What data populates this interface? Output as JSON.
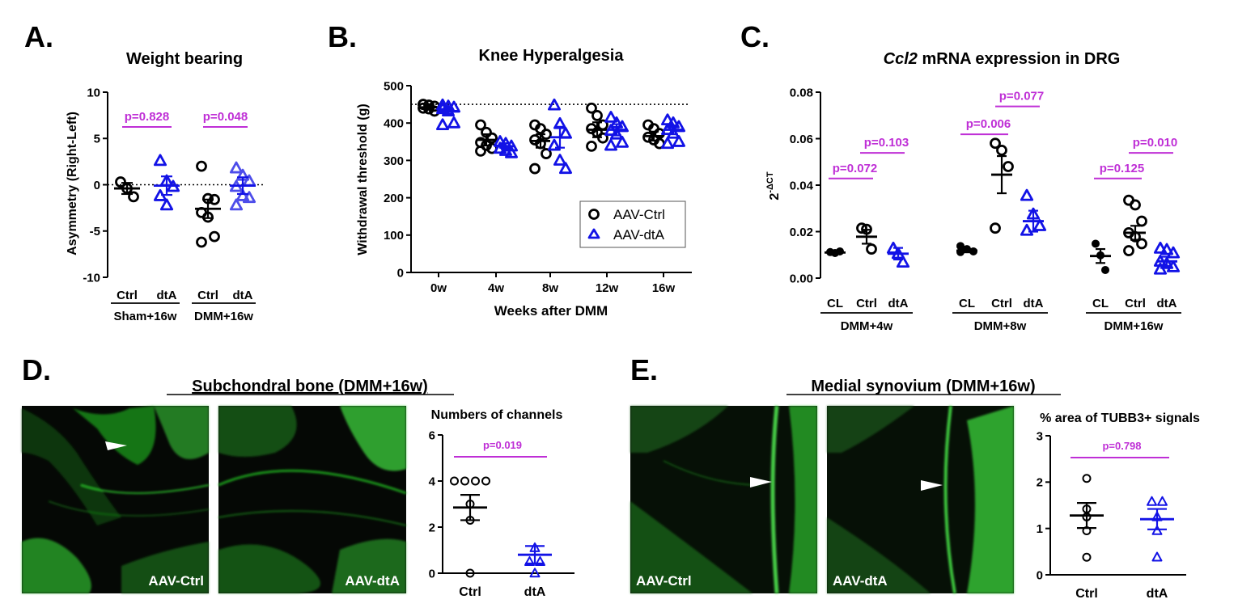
{
  "colors": {
    "ctrl": "#000000",
    "dta": "#1212e6",
    "dta_light": "#4d4dea",
    "pval": "#bf2fd6"
  },
  "chart_data": [
    {
      "id": "A",
      "panel_letter": "A.",
      "type": "scatter",
      "title": "Weight bearing",
      "ylabel": "Asymmetry (Right-Left)",
      "ylim": [
        -10,
        10
      ],
      "yticks": [
        10,
        5,
        0,
        -5,
        -10
      ],
      "yticklabels": [
        "10",
        "5",
        "0",
        "-5",
        "-10"
      ],
      "reference_line": 0,
      "groups": [
        {
          "label": "Ctrl",
          "series": "AAV-Ctrl",
          "mean": -0.4,
          "sem": 0.6,
          "points": [
            0.3,
            -0.4,
            -1.3
          ]
        },
        {
          "label": "dtA",
          "series": "AAV-dtA",
          "mean": -0.1,
          "sem": 1.0,
          "points": [
            2.6,
            0.4,
            -0.2,
            -1.2,
            -2.2
          ]
        },
        {
          "label": "Ctrl",
          "series": "AAV-Ctrl",
          "mean": -2.6,
          "sem": 1.0,
          "points": [
            2.0,
            -1.5,
            -1.6,
            -3.0,
            -3.5,
            -5.6,
            -6.2
          ]
        },
        {
          "label": "dtA",
          "series": "AAV-dtA",
          "mean": -0.1,
          "sem": 0.9,
          "points": [
            1.8,
            1.0,
            0.4,
            -0.2,
            -1.2,
            -1.4,
            -2.2
          ]
        }
      ],
      "group_brackets": [
        {
          "label": "Sham+16w",
          "from": 0,
          "to": 1
        },
        {
          "label": "DMM+16w",
          "from": 2,
          "to": 3
        }
      ],
      "pvalues": [
        {
          "text": "p=0.828",
          "from": 0,
          "to": 1
        },
        {
          "text": "p=0.048",
          "from": 2,
          "to": 3
        }
      ]
    },
    {
      "id": "B",
      "panel_letter": "B.",
      "type": "scatter",
      "title": "Knee Hyperalgesia",
      "xlabel": "Weeks after DMM",
      "ylabel": "Withdrawal threshold (g)",
      "ylim": [
        0,
        500
      ],
      "yticks": [
        500,
        400,
        300,
        200,
        100,
        0
      ],
      "yticklabels": [
        "500",
        "400",
        "300",
        "200",
        "100",
        "0"
      ],
      "reference_line": 450,
      "categories": [
        "0w",
        "4w",
        "8w",
        "12w",
        "16w"
      ],
      "legend": [
        {
          "label": "AAV-Ctrl",
          "marker": "circle"
        },
        {
          "label": "AAV-dtA",
          "marker": "triangle"
        }
      ],
      "series": [
        {
          "name": "AAV-Ctrl",
          "marker": "circle",
          "mean": [
            442,
            355,
            352,
            382,
            365
          ],
          "sem": [
            5,
            15,
            18,
            20,
            12
          ],
          "points": [
            [
              450,
              448,
              445,
              440,
              438,
              432,
              450
            ],
            [
              395,
              375,
              360,
              348,
              340,
              332,
              325
            ],
            [
              395,
              385,
              370,
              355,
              345,
              318,
              278
            ],
            [
              440,
              420,
              395,
              385,
              375,
              360,
              338
            ],
            [
              395,
              385,
              372,
              362,
              355,
              345
            ]
          ]
        },
        {
          "name": "AAV-dtA",
          "marker": "triangle",
          "mean": [
            432,
            338,
            362,
            382,
            382
          ],
          "sem": [
            7,
            8,
            28,
            15,
            12
          ],
          "points": [
            [
              448,
              445,
              442,
              438,
              432,
              400,
              395
            ],
            [
              350,
              345,
              338,
              332,
              326,
              320
            ],
            [
              448,
              398,
              372,
              340,
              300,
              278
            ],
            [
              415,
              400,
              390,
              380,
              370,
              348,
              340
            ],
            [
              408,
              400,
              390,
              382,
              372,
              350,
              345
            ]
          ]
        }
      ]
    },
    {
      "id": "C",
      "panel_letter": "C.",
      "type": "scatter",
      "title_italic": "Ccl2",
      "title_rest": " mRNA expression in DRG",
      "ylabel_base": "2",
      "ylabel_sup": "-ΔCT",
      "ylim": [
        0,
        0.08
      ],
      "yticks": [
        0.08,
        0.06,
        0.04,
        0.02,
        0.0
      ],
      "yticklabels": [
        "0.08",
        "0.06",
        "0.04",
        "0.02",
        "0.00"
      ],
      "groups": [
        {
          "label": "CL",
          "series": "CL",
          "mean": 0.011,
          "sem": 0.0005,
          "points": [
            0.0112,
            0.0108,
            0.0115
          ]
        },
        {
          "label": "Ctrl",
          "series": "AAV-Ctrl",
          "mean": 0.0178,
          "sem": 0.003,
          "points": [
            0.0215,
            0.021,
            0.0125
          ]
        },
        {
          "label": "dtA",
          "series": "AAV-dtA",
          "mean": 0.0105,
          "sem": 0.0025,
          "points": [
            0.0128,
            0.0105,
            0.0068
          ]
        },
        {
          "label": "CL",
          "series": "CL",
          "mean": 0.0118,
          "sem": 0.0007,
          "points": [
            0.0138,
            0.0125,
            0.0115,
            0.0112
          ]
        },
        {
          "label": "Ctrl",
          "series": "AAV-Ctrl",
          "mean": 0.0445,
          "sem": 0.008,
          "points": [
            0.058,
            0.055,
            0.048,
            0.0215
          ]
        },
        {
          "label": "dtA",
          "series": "AAV-dtA",
          "mean": 0.0245,
          "sem": 0.0045,
          "points": [
            0.0355,
            0.0275,
            0.0225,
            0.0205
          ]
        },
        {
          "label": "CL",
          "series": "CL",
          "mean": 0.0095,
          "sem": 0.003,
          "points": [
            0.0148,
            0.0098,
            0.0035
          ]
        },
        {
          "label": "Ctrl",
          "series": "AAV-Ctrl",
          "mean": 0.0195,
          "sem": 0.003,
          "points": [
            0.0335,
            0.0315,
            0.0245,
            0.0195,
            0.0178,
            0.0148,
            0.0118
          ]
        },
        {
          "label": "dtA",
          "series": "AAV-dtA",
          "mean": 0.0072,
          "sem": 0.002,
          "points": [
            0.0128,
            0.0122,
            0.0108,
            0.0072,
            0.0062,
            0.0048,
            0.0038
          ]
        }
      ],
      "group_brackets": [
        {
          "label": "DMM+4w",
          "from": 0,
          "to": 2
        },
        {
          "label": "DMM+8w",
          "from": 3,
          "to": 5
        },
        {
          "label": "DMM+16w",
          "from": 6,
          "to": 8
        }
      ],
      "pvalues": [
        {
          "text": "p=0.072",
          "from": 0,
          "to": 1,
          "y": 0.046
        },
        {
          "text": "p=0.103",
          "from": 1,
          "to": 2,
          "y": 0.057
        },
        {
          "text": "p=0.006",
          "from": 3,
          "to": 4,
          "y": 0.065
        },
        {
          "text": "p=0.077",
          "from": 4,
          "to": 5,
          "y": 0.077
        },
        {
          "text": "p=0.125",
          "from": 6,
          "to": 7,
          "y": 0.046
        },
        {
          "text": "p=0.010",
          "from": 7,
          "to": 8,
          "y": 0.057
        }
      ]
    },
    {
      "id": "D",
      "panel_letter": "D.",
      "type": "scatter",
      "title": "Subchondral bone (DMM+16w)",
      "chart_title": "Numbers of channels",
      "image_labels": [
        "AAV-Ctrl",
        "AAV-dtA"
      ],
      "ylim": [
        0,
        6
      ],
      "yticks": [
        6,
        4,
        2,
        0
      ],
      "yticklabels": [
        "6",
        "4",
        "2",
        "0"
      ],
      "groups": [
        {
          "label": "Ctrl",
          "series": "AAV-Ctrl",
          "mean": 2.85,
          "sem": 0.55,
          "points": [
            4,
            4,
            4,
            4,
            3,
            2.3,
            0
          ]
        },
        {
          "label": "dtA",
          "series": "AAV-dtA",
          "mean": 0.8,
          "sem": 0.38,
          "points": [
            1.1,
            0.5,
            0.5,
            0
          ]
        }
      ],
      "pvalues": [
        {
          "text": "p=0.019",
          "from": 0,
          "to": 1
        }
      ]
    },
    {
      "id": "E",
      "panel_letter": "E.",
      "type": "scatter",
      "title": "Medial synovium (DMM+16w)",
      "chart_title": "% area of TUBB3+ signals",
      "image_labels": [
        "AAV-Ctrl",
        "AAV-dtA"
      ],
      "ylim": [
        0,
        3
      ],
      "yticks": [
        3,
        2,
        1,
        0
      ],
      "yticklabels": [
        "3",
        "2",
        "1",
        "0"
      ],
      "groups": [
        {
          "label": "Ctrl",
          "series": "AAV-Ctrl",
          "mean": 1.28,
          "sem": 0.27,
          "points": [
            2.08,
            1.42,
            1.25,
            0.95,
            0.38
          ]
        },
        {
          "label": "dtA",
          "series": "AAV-dtA",
          "mean": 1.2,
          "sem": 0.22,
          "points": [
            1.58,
            1.58,
            1.25,
            0.95,
            0.38
          ]
        }
      ],
      "pvalues": [
        {
          "text": "p=0.798",
          "from": 0,
          "to": 1
        }
      ]
    }
  ]
}
